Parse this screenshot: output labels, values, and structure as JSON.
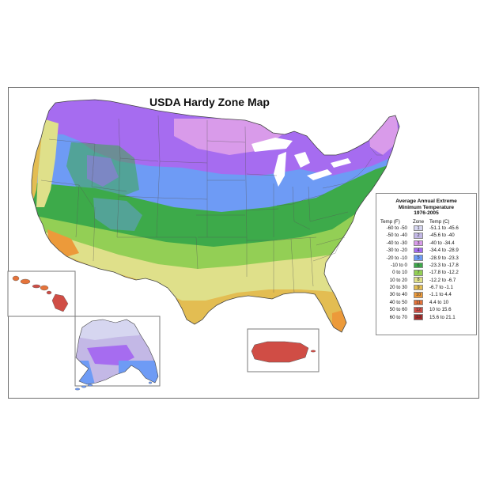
{
  "map": {
    "title": "USDA Hardy Zone Map"
  },
  "legend": {
    "title_lines": [
      "Average Annual Extreme",
      "Minimum Temperature",
      "1976-2005"
    ],
    "headers": {
      "temp_f": "Temp (F)",
      "zone": "Zone",
      "temp_c": "Temp (C)"
    },
    "rows": [
      {
        "temp_f": "-60 to -50",
        "zone": "1",
        "temp_c": "-51.1 to -45.6",
        "color": "#d6d6f0"
      },
      {
        "temp_f": "-50 to -40",
        "zone": "2",
        "temp_c": "-45.6 to -40",
        "color": "#c3b8e6"
      },
      {
        "temp_f": "-40 to -30",
        "zone": "3",
        "temp_c": "-40 to -34.4",
        "color": "#d99bea"
      },
      {
        "temp_f": "-30 to -20",
        "zone": "4",
        "temp_c": "-34.4 to -28.9",
        "color": "#a66cf0"
      },
      {
        "temp_f": "-20 to -10",
        "zone": "5",
        "temp_c": "-28.9 to -23.3",
        "color": "#6e9bf5"
      },
      {
        "temp_f": "-10 to 0",
        "zone": "6",
        "temp_c": "-23.3 to -17.8",
        "color": "#3daa4a"
      },
      {
        "temp_f": "0 to 10",
        "zone": "7",
        "temp_c": "-17.8 to -12.2",
        "color": "#93cf55"
      },
      {
        "temp_f": "10 to 20",
        "zone": "8",
        "temp_c": "-12.2 to -6.7",
        "color": "#dfe08a"
      },
      {
        "temp_f": "20 to 30",
        "zone": "9",
        "temp_c": "-6.7 to -1.1",
        "color": "#e3bd52"
      },
      {
        "temp_f": "30 to 40",
        "zone": "10",
        "temp_c": "-1.1 to 4.4",
        "color": "#ec9a3a"
      },
      {
        "temp_f": "40 to 50",
        "zone": "11",
        "temp_c": "4.4 to 10",
        "color": "#e5733a"
      },
      {
        "temp_f": "50 to 60",
        "zone": "12",
        "temp_c": "10 to 15.6",
        "color": "#d04d45"
      },
      {
        "temp_f": "60 to 70",
        "zone": "13",
        "temp_c": "15.6 to 21.1",
        "color": "#a32a2a"
      }
    ]
  },
  "colors": {
    "zone1": "#d6d6f0",
    "zone2": "#c3b8e6",
    "zone3": "#d99bea",
    "zone4": "#a66cf0",
    "zone5": "#6e9bf5",
    "zone6": "#3daa4a",
    "zone7": "#93cf55",
    "zone8": "#dfe08a",
    "zone9": "#e3bd52",
    "zone10": "#ec9a3a",
    "zone11": "#e5733a",
    "zone12": "#d04d45",
    "zone13": "#a32a2a",
    "border": "#555555",
    "water": "#ffffff"
  }
}
